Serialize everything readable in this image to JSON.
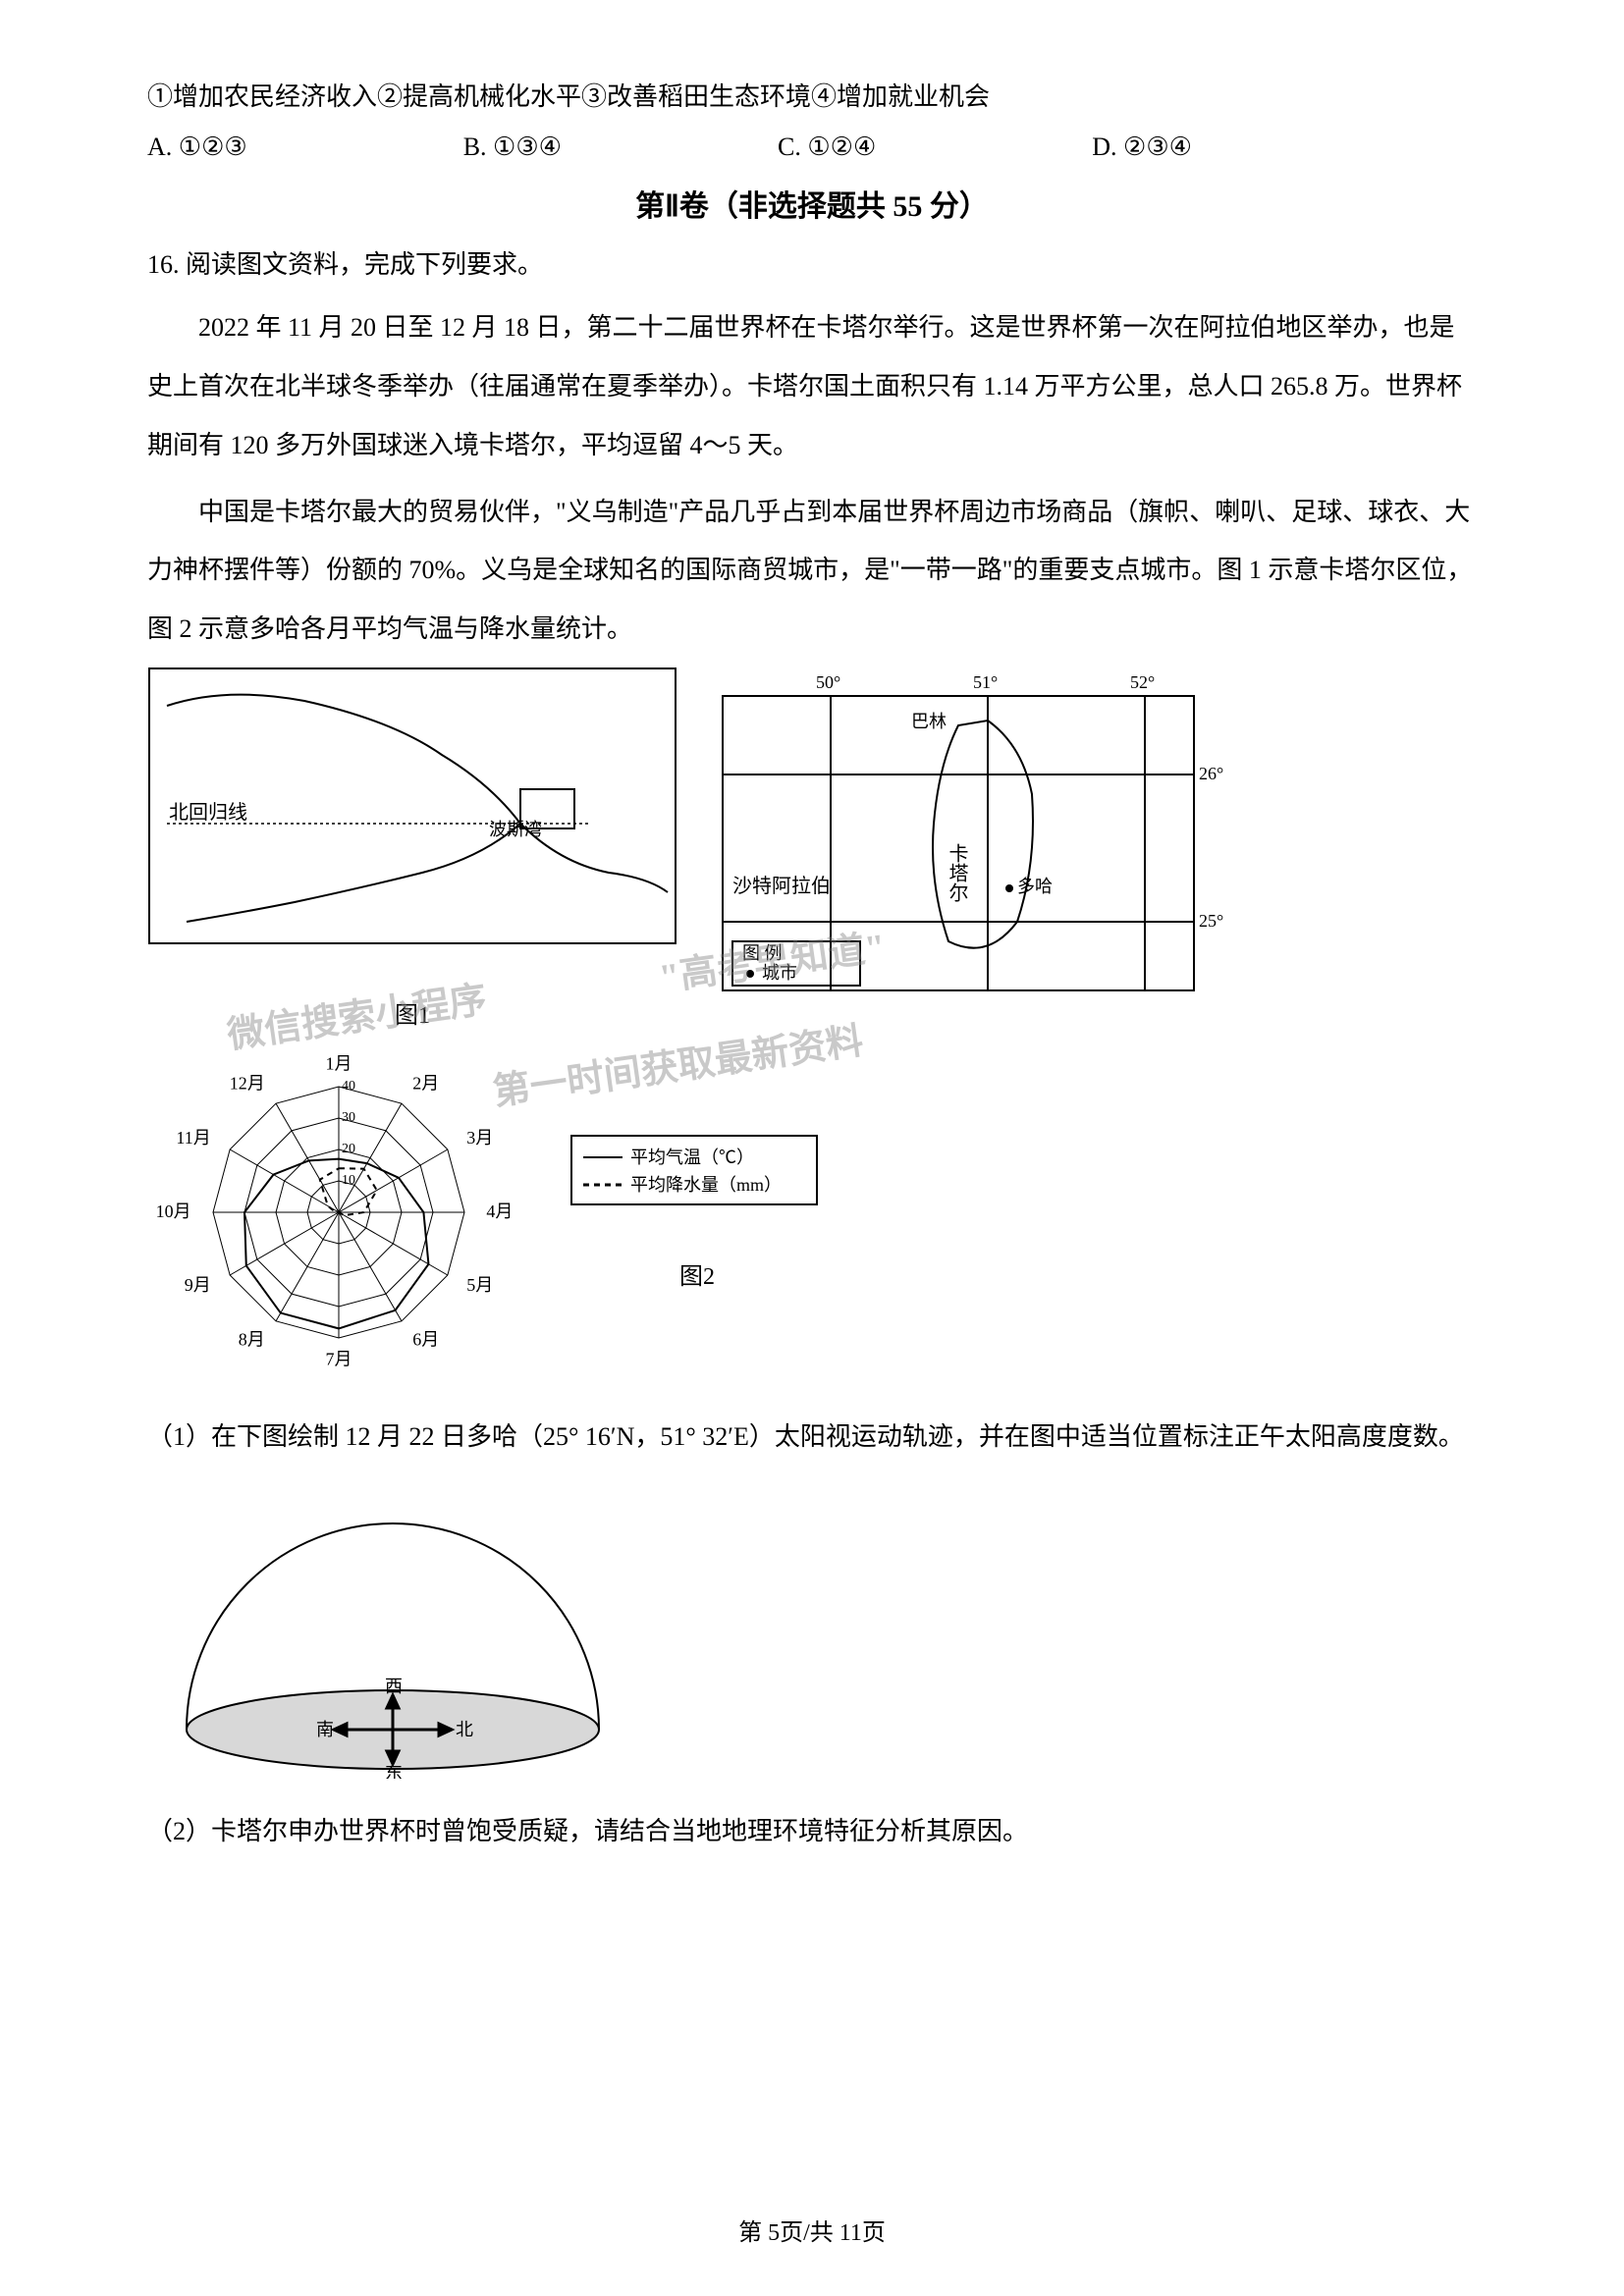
{
  "q15": {
    "stem": "①增加农民经济收入②提高机械化水平③改善稻田生态环境④增加就业机会",
    "options": {
      "A": "A. ①②③",
      "B": "B. ①③④",
      "C": "C. ①②④",
      "D": "D. ②③④"
    }
  },
  "section2_title": "第Ⅱ卷（非选择题共 55 分）",
  "q16": {
    "head": "16. 阅读图文资料，完成下列要求。",
    "p1": "2022 年 11 月 20 日至 12 月 18 日，第二十二届世界杯在卡塔尔举行。这是世界杯第一次在阿拉伯地区举办，也是史上首次在北半球冬季举办（往届通常在夏季举办）。卡塔尔国土面积只有 1.14 万平方公里，总人口 265.8 万。世界杯期间有 120 多万外国球迷入境卡塔尔，平均逗留 4～5 天。",
    "p2": "中国是卡塔尔最大的贸易伙伴，\"义乌制造\"产品几乎占到本届世界杯周边市场商品（旗帜、喇叭、足球、球衣、大力神杯摆件等）份额的 70%。义乌是全球知名的国际商贸城市，是\"一带一路\"的重要支点城市。图 1 示意卡塔尔区位，图 2 示意多哈各月平均气温与降水量统计。",
    "sub1": "（1）在下图绘制 12 月 22 日多哈（25° 16′N，51° 32′E）太阳视运动轨迹，并在图中适当位置标注正午太阳高度度数。",
    "sub2": "（2）卡塔尔申办世界杯时曾饱受质疑，请结合当地地理环境特征分析其原因。"
  },
  "map1": {
    "labels": {
      "tropic": "北回归线",
      "bosi": "波斯湾",
      "fig_label": "图1"
    }
  },
  "map2": {
    "lon": [
      "50°",
      "51°",
      "52°"
    ],
    "lat": [
      "26°",
      "25°"
    ],
    "places": {
      "balin": "巴林",
      "qatar": "卡塔尔",
      "doha": "多哈",
      "saudi": "沙特阿拉伯"
    },
    "legend_title": "图 例",
    "legend_city": "城市"
  },
  "radar": {
    "months": [
      "1月",
      "2月",
      "3月",
      "4月",
      "5月",
      "6月",
      "7月",
      "8月",
      "9月",
      "10月",
      "11月",
      "12月"
    ],
    "rings": [
      "10",
      "20",
      "30",
      "40"
    ],
    "legend_temp": "平均气温（℃）",
    "legend_prec": "平均降水量（mm）",
    "fig_label": "图2",
    "temp_series": [
      17,
      18,
      22,
      27,
      33,
      36,
      37,
      37,
      34,
      30,
      24,
      19
    ],
    "prec_series": [
      14,
      16,
      14,
      8,
      2,
      0,
      0,
      0,
      0,
      1,
      4,
      12
    ],
    "colors": {
      "temp_line": "#000000",
      "prec_line": "#000000",
      "grid": "#000000",
      "bg": "#ffffff"
    },
    "style": {
      "temp_dash": "none",
      "prec_dash": "6,5",
      "line_width": 2,
      "max_r": 40,
      "ring_step": 10
    }
  },
  "dome": {
    "dirs": {
      "n": "北",
      "s": "南",
      "e": "东",
      "w": "西"
    }
  },
  "watermarks": {
    "w1": "微信搜索小程序",
    "w2": "\"高考早知道\"",
    "w3": "第一时间获取最新资料"
  },
  "footer": {
    "prefix": "第 ",
    "page": "5",
    "middle": "页/共 ",
    "total": "11",
    "suffix": "页"
  },
  "colors": {
    "text": "#000000",
    "bg": "#ffffff",
    "grid": "#000000",
    "dome_fill": "#d8d8d8"
  }
}
